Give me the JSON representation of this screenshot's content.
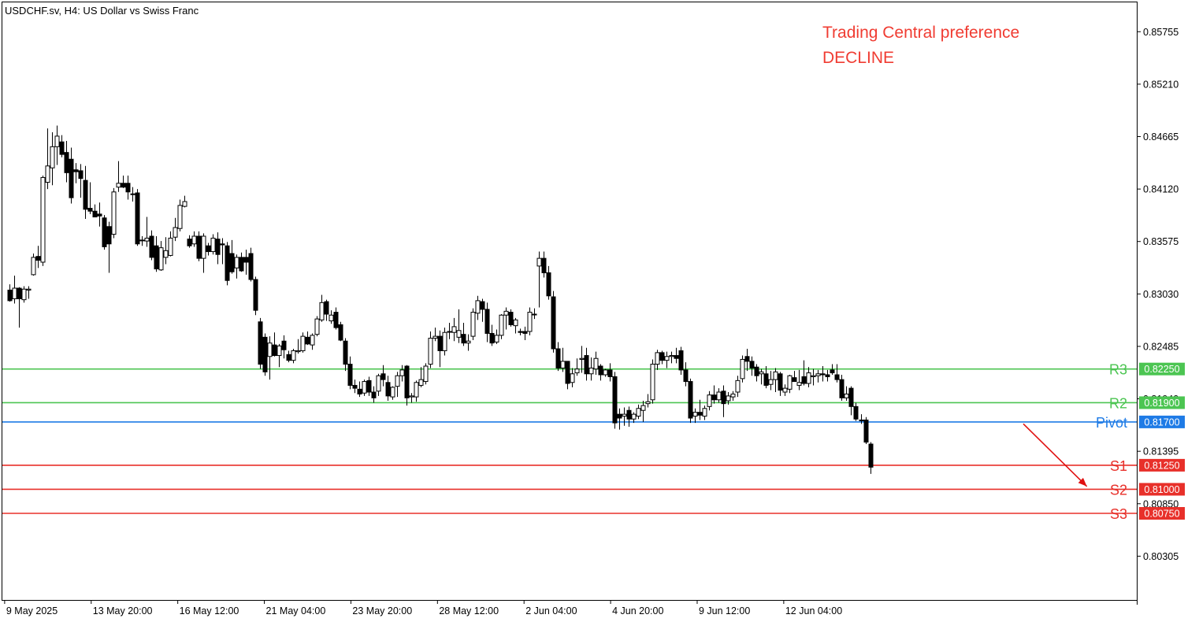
{
  "symbol_title": "USDCHF.sv, H4:  US Dollar vs Swiss Franc",
  "preference": {
    "line1": "Trading Central preference",
    "line2": "DECLINE",
    "color": "#f03c32"
  },
  "colors": {
    "resistance": "#4cc552",
    "pivot": "#1e7be6",
    "support": "#e8302a",
    "bull_body": "#ffffff",
    "bear_body": "#000000",
    "candle_border": "#000000",
    "arrow": "#e01010"
  },
  "chart_data": {
    "type": "candlestick",
    "title": "USDCHF.sv, H4:  US Dollar vs Swiss Franc",
    "ylim": [
      0.7985,
      0.8606
    ],
    "y_ticks": [
      "0.85755",
      "0.85210",
      "0.84665",
      "0.84120",
      "0.83575",
      "0.83030",
      "0.82485",
      "0.81940",
      "0.81395",
      "0.80850",
      "0.80305"
    ],
    "x_labels": [
      "9 May 2025",
      "13 May 20:00",
      "16 May 12:00",
      "21 May 04:00",
      "23 May 20:00",
      "28 May 12:00",
      "2 Jun 04:00",
      "4 Jun 20:00",
      "9 Jun 12:00",
      "12 Jun 04:00"
    ],
    "levels": [
      {
        "label": "R3",
        "value": 0.8225,
        "value_label": "0.82250",
        "kind": "resistance"
      },
      {
        "label": "R2",
        "value": 0.819,
        "value_label": "0.81900",
        "kind": "resistance"
      },
      {
        "label": "Pivot",
        "value": 0.817,
        "value_label": "0.81700",
        "kind": "pivot"
      },
      {
        "label": "S1",
        "value": 0.8125,
        "value_label": "0.81250",
        "kind": "support"
      },
      {
        "label": "S2",
        "value": 0.81,
        "value_label": "0.81000",
        "kind": "support"
      },
      {
        "label": "S3",
        "value": 0.8075,
        "value_label": "0.80750",
        "kind": "support"
      }
    ],
    "arrow": {
      "from_x": 0.9,
      "from_y": 0.8168,
      "to_x": 0.956,
      "to_y": 0.8103
    },
    "candles_start_x": 0.006,
    "candle_step": 0.00417,
    "candles": [
      [
        0.8307,
        0.8313,
        0.8295,
        0.8296
      ],
      [
        0.8298,
        0.8322,
        0.8293,
        0.8309
      ],
      [
        0.8309,
        0.831,
        0.8268,
        0.8298
      ],
      [
        0.8297,
        0.8311,
        0.8294,
        0.8308
      ],
      [
        0.8307,
        0.8311,
        0.8298,
        0.8308
      ],
      [
        0.8323,
        0.8345,
        0.8322,
        0.8341
      ],
      [
        0.8342,
        0.8353,
        0.833,
        0.8338
      ],
      [
        0.8336,
        0.8426,
        0.8332,
        0.8424
      ],
      [
        0.8419,
        0.8475,
        0.8412,
        0.8436
      ],
      [
        0.8434,
        0.8471,
        0.8416,
        0.8456
      ],
      [
        0.8456,
        0.8478,
        0.8437,
        0.8467
      ],
      [
        0.8461,
        0.8468,
        0.8445,
        0.8448
      ],
      [
        0.845,
        0.8462,
        0.8419,
        0.8429
      ],
      [
        0.8443,
        0.8455,
        0.8397,
        0.8403
      ],
      [
        0.8432,
        0.8439,
        0.8418,
        0.843
      ],
      [
        0.8431,
        0.8438,
        0.8403,
        0.8423
      ],
      [
        0.8421,
        0.8436,
        0.8381,
        0.8391
      ],
      [
        0.8392,
        0.8419,
        0.8386,
        0.8389
      ],
      [
        0.8389,
        0.8396,
        0.8383,
        0.8383
      ],
      [
        0.8386,
        0.8398,
        0.8373,
        0.8384
      ],
      [
        0.8382,
        0.8385,
        0.8349,
        0.8352
      ],
      [
        0.8373,
        0.8378,
        0.8325,
        0.8355
      ],
      [
        0.8365,
        0.8413,
        0.8361,
        0.8409
      ],
      [
        0.8414,
        0.8441,
        0.8409,
        0.8418
      ],
      [
        0.8418,
        0.8426,
        0.8413,
        0.8414
      ],
      [
        0.8418,
        0.8426,
        0.8401,
        0.8409
      ],
      [
        0.8407,
        0.8414,
        0.8399,
        0.8407
      ],
      [
        0.8408,
        0.8412,
        0.8353,
        0.8355
      ],
      [
        0.8359,
        0.8363,
        0.8353,
        0.8359
      ],
      [
        0.8358,
        0.8383,
        0.8352,
        0.8361
      ],
      [
        0.8363,
        0.8369,
        0.8338,
        0.8341
      ],
      [
        0.8353,
        0.8363,
        0.8326,
        0.8329
      ],
      [
        0.8328,
        0.8358,
        0.8327,
        0.8351
      ],
      [
        0.8341,
        0.8362,
        0.8334,
        0.8348
      ],
      [
        0.8343,
        0.8368,
        0.8342,
        0.8361
      ],
      [
        0.8362,
        0.8382,
        0.8358,
        0.8372
      ],
      [
        0.8371,
        0.8401,
        0.8368,
        0.8395
      ],
      [
        0.8394,
        0.8405,
        0.8393,
        0.8399
      ],
      [
        0.836,
        0.8364,
        0.8351,
        0.8353
      ],
      [
        0.8355,
        0.8368,
        0.8352,
        0.8363
      ],
      [
        0.8363,
        0.8368,
        0.8337,
        0.834
      ],
      [
        0.834,
        0.8366,
        0.8325,
        0.8363
      ],
      [
        0.8353,
        0.8356,
        0.8343,
        0.8347
      ],
      [
        0.8347,
        0.8365,
        0.8344,
        0.8361
      ],
      [
        0.836,
        0.8367,
        0.8334,
        0.8344
      ],
      [
        0.8355,
        0.8361,
        0.8334,
        0.8354
      ],
      [
        0.8353,
        0.8357,
        0.8312,
        0.8317
      ],
      [
        0.8345,
        0.8359,
        0.8324,
        0.8326
      ],
      [
        0.833,
        0.8344,
        0.8319,
        0.8341
      ],
      [
        0.8341,
        0.8346,
        0.8326,
        0.8327
      ],
      [
        0.8341,
        0.8349,
        0.8323,
        0.8336
      ],
      [
        0.8345,
        0.8351,
        0.8316,
        0.8318
      ],
      [
        0.8318,
        0.8321,
        0.8281,
        0.8286
      ],
      [
        0.8274,
        0.8278,
        0.8225,
        0.823
      ],
      [
        0.8258,
        0.8262,
        0.8218,
        0.8222
      ],
      [
        0.8238,
        0.8259,
        0.8214,
        0.8252
      ],
      [
        0.825,
        0.8263,
        0.8238,
        0.8239
      ],
      [
        0.8239,
        0.8251,
        0.8227,
        0.8249
      ],
      [
        0.8254,
        0.826,
        0.8236,
        0.8245
      ],
      [
        0.824,
        0.8244,
        0.8232,
        0.8234
      ],
      [
        0.8234,
        0.8246,
        0.8231,
        0.8244
      ],
      [
        0.8243,
        0.8256,
        0.8241,
        0.8244
      ],
      [
        0.8244,
        0.8263,
        0.8242,
        0.8259
      ],
      [
        0.8258,
        0.8264,
        0.825,
        0.8251
      ],
      [
        0.825,
        0.8262,
        0.8245,
        0.826
      ],
      [
        0.8261,
        0.828,
        0.8259,
        0.8277
      ],
      [
        0.8276,
        0.8302,
        0.8274,
        0.8294
      ],
      [
        0.8295,
        0.8297,
        0.8275,
        0.8282
      ],
      [
        0.8275,
        0.8286,
        0.8272,
        0.8281
      ],
      [
        0.8284,
        0.8289,
        0.8266,
        0.8268
      ],
      [
        0.8271,
        0.8274,
        0.8254,
        0.8255
      ],
      [
        0.8254,
        0.8257,
        0.8223,
        0.823
      ],
      [
        0.823,
        0.8238,
        0.8204,
        0.8208
      ],
      [
        0.8208,
        0.8214,
        0.82,
        0.8205
      ],
      [
        0.8204,
        0.8212,
        0.8196,
        0.8199
      ],
      [
        0.82,
        0.8214,
        0.8197,
        0.8212
      ],
      [
        0.8213,
        0.8217,
        0.8197,
        0.8201
      ],
      [
        0.8201,
        0.8207,
        0.819,
        0.8195
      ],
      [
        0.8202,
        0.822,
        0.8197,
        0.8218
      ],
      [
        0.822,
        0.8229,
        0.8207,
        0.8214
      ],
      [
        0.8211,
        0.8218,
        0.8192,
        0.8197
      ],
      [
        0.8196,
        0.8207,
        0.8193,
        0.8206
      ],
      [
        0.8207,
        0.8222,
        0.8196,
        0.8218
      ],
      [
        0.8218,
        0.8229,
        0.8212,
        0.8224
      ],
      [
        0.8228,
        0.8229,
        0.8187,
        0.8195
      ],
      [
        0.8196,
        0.82,
        0.819,
        0.8197
      ],
      [
        0.8196,
        0.8213,
        0.8191,
        0.8211
      ],
      [
        0.8208,
        0.8227,
        0.8206,
        0.8214
      ],
      [
        0.8212,
        0.8231,
        0.8209,
        0.8228
      ],
      [
        0.823,
        0.8264,
        0.8226,
        0.8257
      ],
      [
        0.8257,
        0.8268,
        0.8254,
        0.8259
      ],
      [
        0.8259,
        0.8265,
        0.8227,
        0.8244
      ],
      [
        0.8244,
        0.8268,
        0.8239,
        0.8263
      ],
      [
        0.8264,
        0.8273,
        0.8256,
        0.8264
      ],
      [
        0.8263,
        0.8278,
        0.8254,
        0.8269
      ],
      [
        0.8258,
        0.8287,
        0.8252,
        0.8265
      ],
      [
        0.8261,
        0.8273,
        0.8249,
        0.8252
      ],
      [
        0.8252,
        0.8261,
        0.8244,
        0.8254
      ],
      [
        0.8259,
        0.8288,
        0.8255,
        0.8284
      ],
      [
        0.8283,
        0.8301,
        0.8276,
        0.8296
      ],
      [
        0.8295,
        0.8298,
        0.8274,
        0.8287
      ],
      [
        0.8287,
        0.8294,
        0.8253,
        0.8262
      ],
      [
        0.8262,
        0.8271,
        0.8249,
        0.8252
      ],
      [
        0.8253,
        0.8266,
        0.8251,
        0.826
      ],
      [
        0.826,
        0.8282,
        0.8256,
        0.8281
      ],
      [
        0.8281,
        0.8289,
        0.8266,
        0.8285
      ],
      [
        0.8284,
        0.8287,
        0.8269,
        0.8271
      ],
      [
        0.827,
        0.8278,
        0.8262,
        0.8276
      ],
      [
        0.8264,
        0.8267,
        0.826,
        0.8263
      ],
      [
        0.8264,
        0.8269,
        0.8255,
        0.8262
      ],
      [
        0.8264,
        0.8289,
        0.826,
        0.8284
      ],
      [
        0.8282,
        0.8288,
        0.8277,
        0.8282
      ],
      [
        0.8332,
        0.8347,
        0.8289,
        0.834
      ],
      [
        0.834,
        0.8347,
        0.832,
        0.8325
      ],
      [
        0.8325,
        0.8332,
        0.8297,
        0.8301
      ],
      [
        0.83,
        0.8306,
        0.8242,
        0.8246
      ],
      [
        0.8246,
        0.8253,
        0.8223,
        0.8226
      ],
      [
        0.8226,
        0.8247,
        0.8222,
        0.8233
      ],
      [
        0.8233,
        0.8233,
        0.8204,
        0.821
      ],
      [
        0.8211,
        0.8226,
        0.8206,
        0.822
      ],
      [
        0.8221,
        0.8236,
        0.8218,
        0.8225
      ],
      [
        0.8235,
        0.8249,
        0.8221,
        0.8236
      ],
      [
        0.8239,
        0.8247,
        0.8213,
        0.822
      ],
      [
        0.822,
        0.8237,
        0.8213,
        0.8226
      ],
      [
        0.8225,
        0.8243,
        0.8219,
        0.8236
      ],
      [
        0.8228,
        0.823,
        0.8213,
        0.8219
      ],
      [
        0.8219,
        0.8225,
        0.8217,
        0.8224
      ],
      [
        0.8224,
        0.8231,
        0.8212,
        0.8217
      ],
      [
        0.8217,
        0.8222,
        0.8163,
        0.8169
      ],
      [
        0.8178,
        0.8184,
        0.8162,
        0.8174
      ],
      [
        0.8176,
        0.8185,
        0.8166,
        0.8178
      ],
      [
        0.8182,
        0.8186,
        0.8165,
        0.8173
      ],
      [
        0.8173,
        0.818,
        0.8169,
        0.8178
      ],
      [
        0.8176,
        0.8188,
        0.8173,
        0.8184
      ],
      [
        0.8182,
        0.8192,
        0.817,
        0.8187
      ],
      [
        0.8189,
        0.8199,
        0.8185,
        0.8191
      ],
      [
        0.8193,
        0.8235,
        0.8189,
        0.823
      ],
      [
        0.823,
        0.8245,
        0.8224,
        0.8242
      ],
      [
        0.8242,
        0.8244,
        0.823,
        0.8234
      ],
      [
        0.8234,
        0.8243,
        0.8226,
        0.8238
      ],
      [
        0.8238,
        0.8243,
        0.8231,
        0.8239
      ],
      [
        0.8239,
        0.8247,
        0.8231,
        0.8236
      ],
      [
        0.8244,
        0.8248,
        0.8219,
        0.8224
      ],
      [
        0.8224,
        0.8232,
        0.8207,
        0.8212
      ],
      [
        0.8212,
        0.8215,
        0.8169,
        0.8174
      ],
      [
        0.8176,
        0.8184,
        0.8169,
        0.818
      ],
      [
        0.818,
        0.8193,
        0.8172,
        0.8177
      ],
      [
        0.8176,
        0.8187,
        0.8172,
        0.8184
      ],
      [
        0.8186,
        0.8202,
        0.8182,
        0.8198
      ],
      [
        0.8198,
        0.8208,
        0.8189,
        0.8193
      ],
      [
        0.8193,
        0.8205,
        0.819,
        0.8201
      ],
      [
        0.8202,
        0.8208,
        0.8175,
        0.8189
      ],
      [
        0.8192,
        0.8201,
        0.8188,
        0.8197
      ],
      [
        0.8196,
        0.8202,
        0.8192,
        0.8199
      ],
      [
        0.8201,
        0.8218,
        0.8196,
        0.8213
      ],
      [
        0.8215,
        0.8239,
        0.8211,
        0.8235
      ],
      [
        0.8238,
        0.8246,
        0.8223,
        0.8233
      ],
      [
        0.8233,
        0.8238,
        0.8218,
        0.8226
      ],
      [
        0.8227,
        0.823,
        0.8212,
        0.8218
      ],
      [
        0.822,
        0.8225,
        0.8209,
        0.8222
      ],
      [
        0.822,
        0.8228,
        0.8205,
        0.8208
      ],
      [
        0.8209,
        0.8223,
        0.8203,
        0.8214
      ],
      [
        0.8214,
        0.8226,
        0.8201,
        0.8222
      ],
      [
        0.822,
        0.8222,
        0.8197,
        0.8203
      ],
      [
        0.8201,
        0.8209,
        0.8197,
        0.8205
      ],
      [
        0.8204,
        0.8219,
        0.82,
        0.8218
      ],
      [
        0.8216,
        0.8223,
        0.8212,
        0.8212
      ],
      [
        0.8208,
        0.8224,
        0.8203,
        0.8211
      ],
      [
        0.8217,
        0.8234,
        0.8208,
        0.821
      ],
      [
        0.821,
        0.8227,
        0.8206,
        0.8221
      ],
      [
        0.8217,
        0.8225,
        0.8208,
        0.8218
      ],
      [
        0.8218,
        0.8224,
        0.8211,
        0.822
      ],
      [
        0.822,
        0.8228,
        0.8212,
        0.8219
      ],
      [
        0.8219,
        0.8224,
        0.8212,
        0.8217
      ],
      [
        0.8224,
        0.823,
        0.8219,
        0.8221
      ],
      [
        0.8219,
        0.823,
        0.8211,
        0.8214
      ],
      [
        0.8214,
        0.8219,
        0.8192,
        0.8195
      ],
      [
        0.8195,
        0.8207,
        0.8192,
        0.8199
      ],
      [
        0.8205,
        0.8207,
        0.8177,
        0.8186
      ],
      [
        0.8186,
        0.819,
        0.8171,
        0.8173
      ],
      [
        0.8172,
        0.8178,
        0.8168,
        0.8172
      ],
      [
        0.8172,
        0.8175,
        0.8147,
        0.8149
      ],
      [
        0.8147,
        0.8149,
        0.8116,
        0.8123
      ]
    ]
  }
}
